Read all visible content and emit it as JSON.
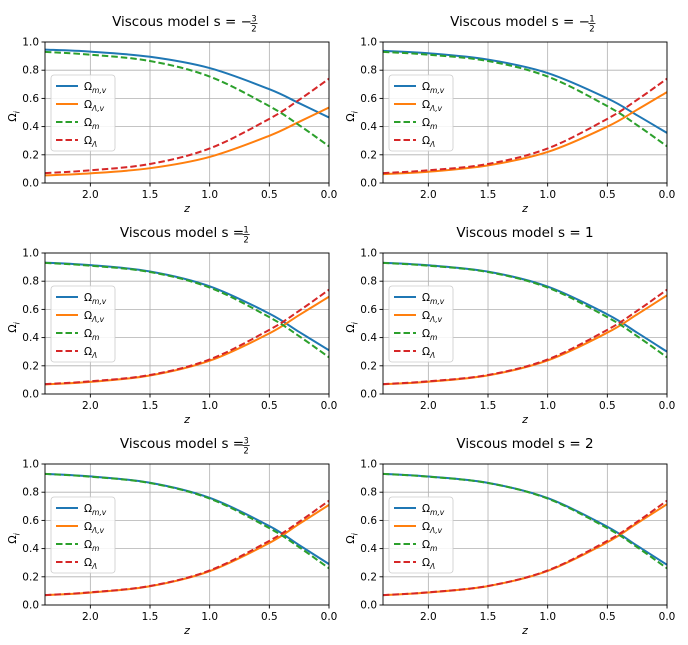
{
  "chart_data": [
    {
      "type": "line",
      "title": "Viscous model s = −3/2",
      "title_prefix": "Viscous model s = −",
      "s_num": "3",
      "s_den": "2",
      "xlabel": "z",
      "ylabel": "Ω_i",
      "xlim": [
        2.38,
        0.0
      ],
      "ylim": [
        0.0,
        1.0
      ],
      "xticks": [
        "2.0",
        "1.5",
        "1.0",
        "0.5",
        "0.0"
      ],
      "yticks": [
        "0.0",
        "0.2",
        "0.4",
        "0.6",
        "0.8",
        "1.0"
      ],
      "x": [
        2.38,
        2.0,
        1.5,
        1.0,
        0.5,
        0.25,
        0.0
      ],
      "legend_position": "center-left",
      "series": [
        {
          "name": "Ω_m,v",
          "style": "solid",
          "color": "#1f77b4",
          "values": [
            0.946,
            0.932,
            0.895,
            0.815,
            0.665,
            0.566,
            0.465
          ]
        },
        {
          "name": "Ω_Λ,v",
          "style": "solid",
          "color": "#ff7f0e",
          "values": [
            0.054,
            0.068,
            0.105,
            0.185,
            0.335,
            0.434,
            0.535
          ]
        },
        {
          "name": "Ω_m",
          "style": "dashed",
          "color": "#2ca02c",
          "values": [
            0.93,
            0.91,
            0.865,
            0.755,
            0.545,
            0.41,
            0.26
          ]
        },
        {
          "name": "Ω_Λ",
          "style": "dashed",
          "color": "#d62728",
          "values": [
            0.07,
            0.09,
            0.135,
            0.245,
            0.455,
            0.59,
            0.74
          ]
        }
      ]
    },
    {
      "type": "line",
      "title": "Viscous model s = −1/2",
      "title_prefix": "Viscous model s = −",
      "s_num": "1",
      "s_den": "2",
      "xlabel": "z",
      "ylabel": "Ω_i",
      "xlim": [
        2.38,
        0.0
      ],
      "ylim": [
        0.0,
        1.0
      ],
      "xticks": [
        "2.0",
        "1.5",
        "1.0",
        "0.5",
        "0.0"
      ],
      "yticks": [
        "0.0",
        "0.2",
        "0.4",
        "0.6",
        "0.8",
        "1.0"
      ],
      "x": [
        2.38,
        2.0,
        1.5,
        1.0,
        0.5,
        0.25,
        0.0
      ],
      "legend_position": "center-left",
      "series": [
        {
          "name": "Ω_m,v",
          "style": "solid",
          "color": "#1f77b4",
          "values": [
            0.937,
            0.92,
            0.875,
            0.78,
            0.6,
            0.48,
            0.355
          ]
        },
        {
          "name": "Ω_Λ,v",
          "style": "solid",
          "color": "#ff7f0e",
          "values": [
            0.063,
            0.08,
            0.125,
            0.22,
            0.4,
            0.52,
            0.645
          ]
        },
        {
          "name": "Ω_m",
          "style": "dashed",
          "color": "#2ca02c",
          "values": [
            0.93,
            0.91,
            0.865,
            0.755,
            0.545,
            0.41,
            0.26
          ]
        },
        {
          "name": "Ω_Λ",
          "style": "dashed",
          "color": "#d62728",
          "values": [
            0.07,
            0.09,
            0.135,
            0.245,
            0.455,
            0.59,
            0.74
          ]
        }
      ]
    },
    {
      "type": "line",
      "title": "Viscous model s = 1/2",
      "title_prefix": "Viscous model s = ",
      "s_num": "1",
      "s_den": "2",
      "xlabel": "z",
      "ylabel": "Ω_i",
      "xlim": [
        2.38,
        0.0
      ],
      "ylim": [
        0.0,
        1.0
      ],
      "xticks": [
        "2.0",
        "1.5",
        "1.0",
        "0.5",
        "0.0"
      ],
      "yticks": [
        "0.0",
        "0.2",
        "0.4",
        "0.6",
        "0.8",
        "1.0"
      ],
      "x": [
        2.38,
        2.0,
        1.5,
        1.0,
        0.5,
        0.25,
        0.0
      ],
      "legend_position": "center-left",
      "series": [
        {
          "name": "Ω_m,v",
          "style": "solid",
          "color": "#1f77b4",
          "values": [
            0.932,
            0.914,
            0.869,
            0.764,
            0.57,
            0.44,
            0.31
          ]
        },
        {
          "name": "Ω_Λ,v",
          "style": "solid",
          "color": "#ff7f0e",
          "values": [
            0.068,
            0.086,
            0.131,
            0.236,
            0.43,
            0.56,
            0.69
          ]
        },
        {
          "name": "Ω_m",
          "style": "dashed",
          "color": "#2ca02c",
          "values": [
            0.93,
            0.91,
            0.865,
            0.755,
            0.545,
            0.41,
            0.26
          ]
        },
        {
          "name": "Ω_Λ",
          "style": "dashed",
          "color": "#d62728",
          "values": [
            0.07,
            0.09,
            0.135,
            0.245,
            0.455,
            0.59,
            0.74
          ]
        }
      ]
    },
    {
      "type": "line",
      "title": "Viscous model s = 1",
      "title_prefix": "Viscous model s = 1",
      "s_num": "",
      "s_den": "",
      "xlabel": "z",
      "ylabel": "Ω_i",
      "xlim": [
        2.38,
        0.0
      ],
      "ylim": [
        0.0,
        1.0
      ],
      "xticks": [
        "2.0",
        "1.5",
        "1.0",
        "0.5",
        "0.0"
      ],
      "yticks": [
        "0.0",
        "0.2",
        "0.4",
        "0.6",
        "0.8",
        "1.0"
      ],
      "x": [
        2.38,
        2.0,
        1.5,
        1.0,
        0.5,
        0.25,
        0.0
      ],
      "legend_position": "center-left",
      "series": [
        {
          "name": "Ω_m,v",
          "style": "solid",
          "color": "#1f77b4",
          "values": [
            0.931,
            0.913,
            0.868,
            0.762,
            0.565,
            0.435,
            0.3
          ]
        },
        {
          "name": "Ω_Λ,v",
          "style": "solid",
          "color": "#ff7f0e",
          "values": [
            0.069,
            0.087,
            0.132,
            0.238,
            0.435,
            0.565,
            0.7
          ]
        },
        {
          "name": "Ω_m",
          "style": "dashed",
          "color": "#2ca02c",
          "values": [
            0.93,
            0.91,
            0.865,
            0.755,
            0.545,
            0.41,
            0.26
          ]
        },
        {
          "name": "Ω_Λ",
          "style": "dashed",
          "color": "#d62728",
          "values": [
            0.07,
            0.09,
            0.135,
            0.245,
            0.455,
            0.59,
            0.74
          ]
        }
      ]
    },
    {
      "type": "line",
      "title": "Viscous model s = 3/2",
      "title_prefix": "Viscous model s = ",
      "s_num": "3",
      "s_den": "2",
      "xlabel": "z",
      "ylabel": "Ω_i",
      "xlim": [
        2.38,
        0.0
      ],
      "ylim": [
        0.0,
        1.0
      ],
      "xticks": [
        "2.0",
        "1.5",
        "1.0",
        "0.5",
        "0.0"
      ],
      "yticks": [
        "0.0",
        "0.2",
        "0.4",
        "0.6",
        "0.8",
        "1.0"
      ],
      "x": [
        2.38,
        2.0,
        1.5,
        1.0,
        0.5,
        0.25,
        0.0
      ],
      "legend_position": "center-left",
      "series": [
        {
          "name": "Ω_m,v",
          "style": "solid",
          "color": "#1f77b4",
          "values": [
            0.93,
            0.912,
            0.867,
            0.76,
            0.56,
            0.425,
            0.29
          ]
        },
        {
          "name": "Ω_Λ,v",
          "style": "solid",
          "color": "#ff7f0e",
          "values": [
            0.07,
            0.088,
            0.133,
            0.24,
            0.44,
            0.575,
            0.71
          ]
        },
        {
          "name": "Ω_m",
          "style": "dashed",
          "color": "#2ca02c",
          "values": [
            0.93,
            0.91,
            0.865,
            0.755,
            0.545,
            0.41,
            0.26
          ]
        },
        {
          "name": "Ω_Λ",
          "style": "dashed",
          "color": "#d62728",
          "values": [
            0.07,
            0.09,
            0.135,
            0.245,
            0.455,
            0.59,
            0.74
          ]
        }
      ]
    },
    {
      "type": "line",
      "title": "Viscous model s = 2",
      "title_prefix": "Viscous model s = 2",
      "s_num": "",
      "s_den": "",
      "xlabel": "z",
      "ylabel": "Ω_i",
      "xlim": [
        2.38,
        0.0
      ],
      "ylim": [
        0.0,
        1.0
      ],
      "xticks": [
        "2.0",
        "1.5",
        "1.0",
        "0.5",
        "0.0"
      ],
      "yticks": [
        "0.0",
        "0.2",
        "0.4",
        "0.6",
        "0.8",
        "1.0"
      ],
      "x": [
        2.38,
        2.0,
        1.5,
        1.0,
        0.5,
        0.25,
        0.0
      ],
      "legend_position": "center-left",
      "series": [
        {
          "name": "Ω_m,v",
          "style": "solid",
          "color": "#1f77b4",
          "values": [
            0.93,
            0.911,
            0.866,
            0.758,
            0.555,
            0.42,
            0.285
          ]
        },
        {
          "name": "Ω_Λ,v",
          "style": "solid",
          "color": "#ff7f0e",
          "values": [
            0.07,
            0.089,
            0.134,
            0.242,
            0.445,
            0.58,
            0.715
          ]
        },
        {
          "name": "Ω_m",
          "style": "dashed",
          "color": "#2ca02c",
          "values": [
            0.93,
            0.91,
            0.865,
            0.755,
            0.545,
            0.41,
            0.26
          ]
        },
        {
          "name": "Ω_Λ",
          "style": "dashed",
          "color": "#d62728",
          "values": [
            0.07,
            0.09,
            0.135,
            0.245,
            0.455,
            0.59,
            0.74
          ]
        }
      ]
    }
  ]
}
